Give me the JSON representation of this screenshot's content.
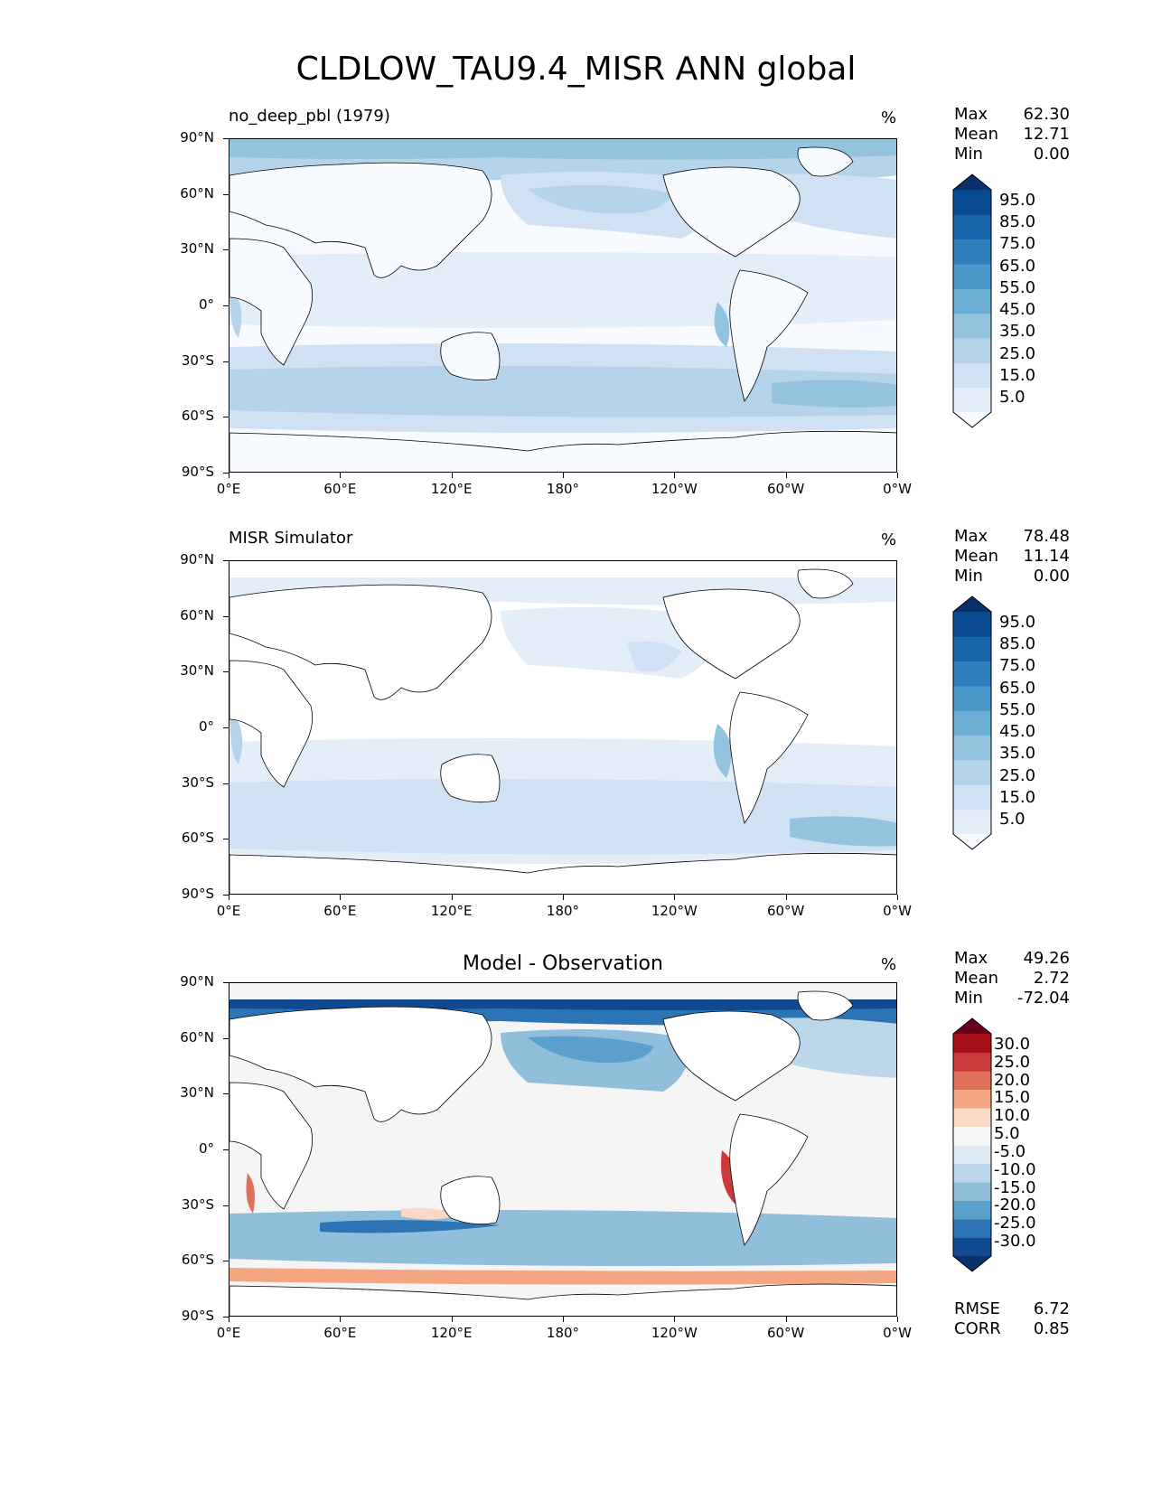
{
  "title": "CLDLOW_TAU9.4_MISR ANN global",
  "lat_ticks": [
    "90°N",
    "60°N",
    "30°N",
    "0°",
    "30°S",
    "60°S",
    "90°S"
  ],
  "lon_ticks": [
    "0°E",
    "60°E",
    "120°E",
    "180°",
    "120°W",
    "60°W",
    "0°W"
  ],
  "panels": [
    {
      "title": "no_deep_pbl (1979)",
      "title_style": "left",
      "unit": "%",
      "stats": {
        "max_label": "Max",
        "max": "62.30",
        "mean_label": "Mean",
        "mean": "12.71",
        "min_label": "Min",
        "min": "0.00"
      },
      "colorbar": {
        "labels": [
          "95.0",
          "85.0",
          "75.0",
          "65.0",
          "55.0",
          "45.0",
          "35.0",
          "25.0",
          "15.0",
          "5.0"
        ]
      },
      "extra": null
    },
    {
      "title": "MISR Simulator",
      "title_style": "left",
      "unit": "%",
      "stats": {
        "max_label": "Max",
        "max": "78.48",
        "mean_label": "Mean",
        "mean": "11.14",
        "min_label": "Min",
        "min": "0.00"
      },
      "colorbar": {
        "labels": [
          "95.0",
          "85.0",
          "75.0",
          "65.0",
          "55.0",
          "45.0",
          "35.0",
          "25.0",
          "15.0",
          "5.0"
        ]
      },
      "extra": null
    },
    {
      "title": "Model - Observation",
      "title_style": "center",
      "unit": "%",
      "stats": {
        "max_label": "Max",
        "max": "49.26",
        "mean_label": "Mean",
        "mean": "2.72",
        "min_label": "Min",
        "min": "-72.04"
      },
      "colorbar": {
        "labels": [
          "30.0",
          "25.0",
          "20.0",
          "15.0",
          "10.0",
          "5.0",
          "-5.0",
          "-10.0",
          "-15.0",
          "-20.0",
          "-25.0",
          "-30.0"
        ]
      },
      "extra": {
        "rmse_label": "RMSE",
        "rmse": "6.72",
        "corr_label": "CORR",
        "corr": "0.85"
      }
    }
  ],
  "colors": {
    "blues": [
      "#f7fbff",
      "#e3eef9",
      "#cfe1f2",
      "#b5d4e9",
      "#93c3df",
      "#6daed5",
      "#4b97c9",
      "#2f7ebc",
      "#1864aa",
      "#0a4a90",
      "#08306b"
    ],
    "rdbu": [
      "#67001f",
      "#a50f15",
      "#cb3a3a",
      "#e0705a",
      "#f4a582",
      "#fbd9c7",
      "#f7f7f7",
      "#e0ecf4",
      "#bcd7ea",
      "#91bfdb",
      "#5b9fcd",
      "#2c74b4",
      "#10498f",
      "#08306b"
    ]
  }
}
